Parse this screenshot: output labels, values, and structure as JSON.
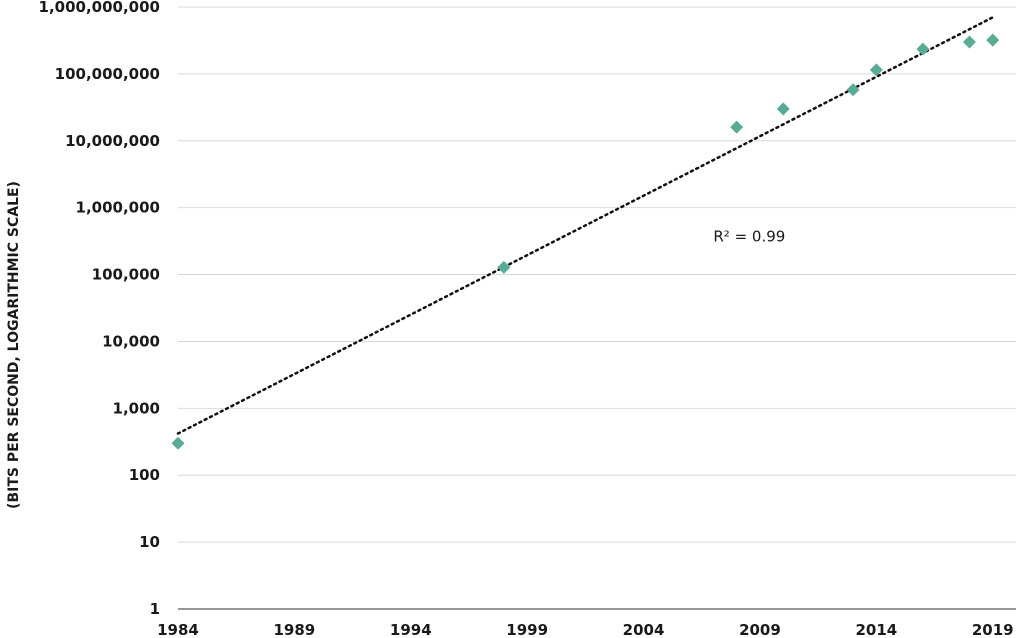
{
  "chart_data": {
    "type": "scatter",
    "scale_y": "log",
    "ylabel": "(BITS PER SECOND, LOGARITHMIC SCALE)",
    "xlabel": "",
    "ylim": [
      1,
      1000000000
    ],
    "xlim": [
      1984,
      2020
    ],
    "x_ticks": [
      "1984",
      "1989",
      "1994",
      "1999",
      "2004",
      "2009",
      "2014",
      "2019"
    ],
    "y_ticks": [
      "1",
      "10",
      "100",
      "1,000",
      "10,000",
      "100,000",
      "1,000,000",
      "10,000,000",
      "100,000,000",
      "1,000,000,000"
    ],
    "grid": true,
    "marker_color": "#5aaa98",
    "series": [
      {
        "x": [
          1984,
          1998,
          2008,
          2010,
          2013,
          2014,
          2016,
          2018,
          2019
        ],
        "y": [
          300,
          128000,
          16000000,
          30000000,
          58000000,
          115000000,
          235000000,
          300000000,
          320000000
        ]
      }
    ],
    "trendline": {
      "type": "exponential",
      "start": [
        1984,
        420
      ],
      "end": [
        2019,
        700000000
      ],
      "style": "dotted"
    },
    "annotations": [
      {
        "text": "R² = 0.99",
        "x": 2007,
        "y": 1000000
      }
    ]
  }
}
